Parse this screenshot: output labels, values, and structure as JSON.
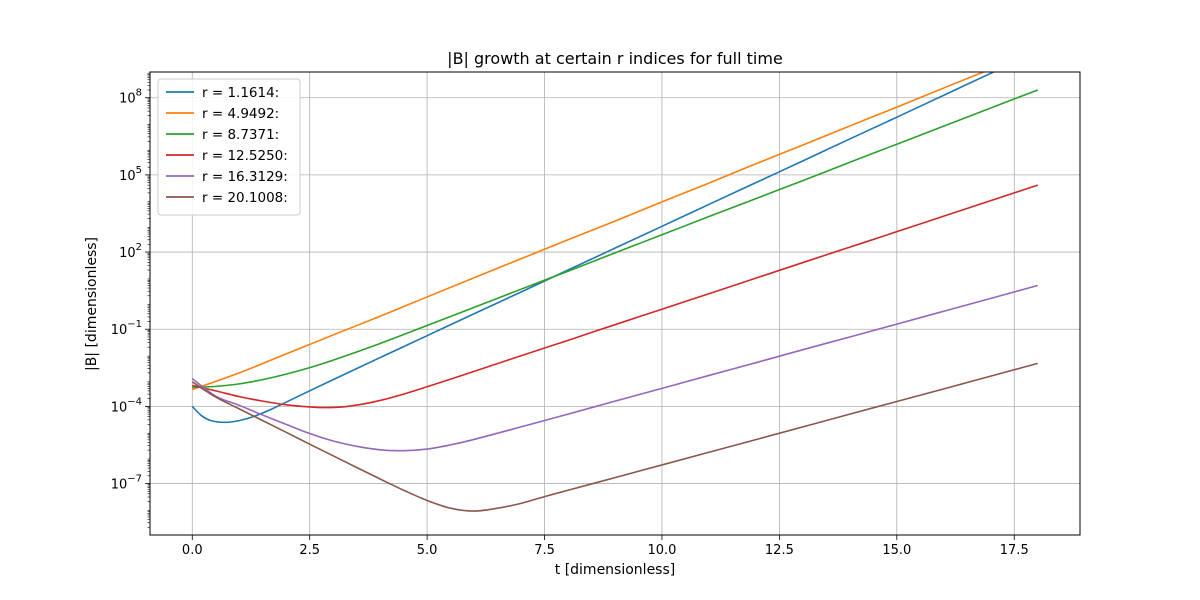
{
  "chart_data": {
    "type": "line",
    "title": "|B| growth at certain r indices for full time",
    "xlabel": "t [dimensionless]",
    "ylabel": "|B| [dimensionless]",
    "yscale": "log",
    "xlim": [
      -0.9,
      18.9
    ],
    "ylim": [
      1e-09,
      1000000000.0
    ],
    "xticks": [
      0.0,
      2.5,
      5.0,
      7.5,
      10.0,
      12.5,
      15.0,
      17.5
    ],
    "xtick_labels": [
      "0.0",
      "2.5",
      "5.0",
      "7.5",
      "10.0",
      "12.5",
      "15.0",
      "17.5"
    ],
    "yticks": [
      1e-07,
      0.0001,
      0.1,
      100,
      100000,
      100000000
    ],
    "ytick_labels": [
      {
        "base": "10",
        "exp": "−7"
      },
      {
        "base": "10",
        "exp": "−4"
      },
      {
        "base": "10",
        "exp": "−1"
      },
      {
        "base": "10",
        "exp": "2"
      },
      {
        "base": "10",
        "exp": "5"
      },
      {
        "base": "10",
        "exp": "8"
      }
    ],
    "grid": true,
    "legend_position": "upper-left",
    "series": [
      {
        "name": "r = 1.1614:",
        "color": "#1f77b4",
        "x": [
          0,
          0.2,
          0.4,
          0.7,
          1.0,
          1.3,
          1.7,
          2.2,
          3,
          4,
          5,
          6,
          7,
          8,
          9,
          10,
          11,
          12,
          13,
          14,
          15,
          16,
          17,
          18
        ],
        "y": [
          0.0001,
          4.3e-05,
          2.8e-05,
          2.4e-05,
          2.8e-05,
          4e-05,
          8e-05,
          0.00022,
          0.0011,
          0.0079,
          0.056,
          0.4,
          2.8,
          20,
          142,
          1000,
          7100,
          50000,
          350000,
          2500000.0,
          17500000.0,
          125000000.0,
          890000000.0,
          6300000000.0
        ]
      },
      {
        "name": "r = 4.9492:",
        "color": "#ff7f0e",
        "x": [
          0,
          1,
          2,
          3,
          4,
          5,
          6,
          7,
          8,
          9,
          10,
          11,
          12,
          13,
          14,
          15,
          16,
          17,
          18
        ],
        "y": [
          0.00045,
          0.002,
          0.011,
          0.06,
          0.32,
          1.8,
          10,
          55,
          300,
          1600,
          8900,
          48000,
          270000,
          1450000.0,
          8000000.0,
          43000000.0,
          240000000.0,
          1300000000.0,
          7100000000.0
        ]
      },
      {
        "name": "r = 8.7371:",
        "color": "#2ca02c",
        "x": [
          0,
          0.5,
          1,
          1.5,
          2,
          2.5,
          3,
          4,
          5,
          6,
          7,
          8,
          9,
          10,
          11,
          12,
          13,
          14,
          15,
          16,
          17,
          18
        ],
        "y": [
          0.00055,
          0.0006,
          0.00075,
          0.0011,
          0.0018,
          0.0032,
          0.0063,
          0.028,
          0.14,
          0.71,
          3.6,
          18,
          93,
          470,
          2400,
          12000,
          60000,
          310000,
          1560000.0,
          7900000.0,
          40000000.0,
          200000000.0
        ]
      },
      {
        "name": "r = 12.5250:",
        "color": "#d62728",
        "x": [
          0,
          0.5,
          1,
          1.5,
          2,
          2.5,
          2.8,
          3.2,
          3.6,
          4,
          4.5,
          5,
          5.5,
          6,
          7,
          8,
          9,
          10,
          11,
          12,
          13,
          14,
          15,
          16,
          17,
          18
        ],
        "y": [
          0.00065,
          0.0004,
          0.00024,
          0.00016,
          0.000115,
          9.5e-05,
          9e-05,
          9.5e-05,
          0.00012,
          0.00017,
          0.0003,
          0.00058,
          0.00115,
          0.0023,
          0.0093,
          0.037,
          0.15,
          0.6,
          2.4,
          9.7,
          39,
          155,
          620,
          2500,
          10000,
          40000
        ]
      },
      {
        "name": "r = 16.3129:",
        "color": "#9467bd",
        "x": [
          0,
          0.5,
          1,
          1.5,
          2,
          2.5,
          3,
          3.5,
          4,
          4.5,
          5,
          5.5,
          6,
          7,
          8,
          9,
          10,
          11,
          12,
          13,
          14,
          15,
          16,
          17,
          18
        ],
        "y": [
          0.0012,
          0.00025,
          0.00011,
          4.6e-05,
          2e-05,
          8.8e-06,
          4.5e-06,
          2.8e-06,
          2.05e-06,
          1.9e-06,
          2.2e-06,
          3.2e-06,
          5.2e-06,
          1.6e-05,
          5e-05,
          0.00016,
          0.0005,
          0.0016,
          0.005,
          0.016,
          0.05,
          0.158,
          0.5,
          1.58,
          5.0
        ]
      },
      {
        "name": "r = 20.1008:",
        "color": "#8c564b",
        "x": [
          0,
          0.5,
          1,
          1.5,
          2,
          2.5,
          3,
          3.5,
          4,
          4.5,
          5,
          5.5,
          6,
          6.5,
          7,
          7.5,
          8,
          9,
          10,
          11,
          12,
          13,
          14,
          15,
          16,
          17,
          18
        ],
        "y": [
          0.0009,
          0.00023,
          8e-05,
          2.8e-05,
          9.8e-06,
          3.4e-06,
          1.2e-06,
          4.2e-07,
          1.5e-07,
          5.5e-08,
          2.2e-08,
          1.1e-08,
          8.5e-09,
          1.1e-08,
          1.7e-08,
          3.1e-08,
          5.5e-08,
          1.7e-07,
          5.3e-07,
          1.65e-06,
          5.1e-06,
          1.6e-05,
          5e-05,
          0.000155,
          0.00048,
          0.0015,
          0.0047
        ]
      }
    ]
  }
}
